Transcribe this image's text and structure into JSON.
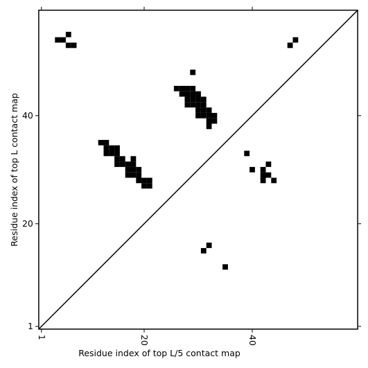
{
  "chart_data": {
    "type": "scatter",
    "marker": "square",
    "color": "#000000",
    "diagonal": true,
    "xlabel": "Residue index of top L/5 contact map",
    "ylabel": "Residue index of top L contact map",
    "xlim": [
      0.5,
      59.5
    ],
    "ylim": [
      0.5,
      59.5
    ],
    "xticks": [
      1,
      20,
      40
    ],
    "yticks": [
      1,
      20,
      40
    ],
    "x": [
      6,
      4,
      5,
      6,
      7,
      47,
      48,
      29,
      26,
      27,
      28,
      29,
      27,
      28,
      29,
      30,
      28,
      29,
      30,
      31,
      28,
      29,
      30,
      31,
      30,
      31,
      32,
      30,
      31,
      32,
      33,
      32,
      33,
      32,
      12,
      13,
      13,
      14,
      15,
      13,
      14,
      15,
      15,
      16,
      18,
      15,
      16,
      17,
      18,
      17,
      18,
      19,
      17,
      18,
      19,
      19,
      20,
      21,
      20,
      21,
      39,
      43,
      40,
      42,
      42,
      43,
      42,
      44,
      32,
      31,
      35
    ],
    "values": [
      55,
      54,
      54,
      53,
      53,
      53,
      54,
      48,
      45,
      45,
      45,
      45,
      44,
      44,
      44,
      44,
      43,
      43,
      43,
      43,
      42,
      42,
      42,
      42,
      41,
      41,
      41,
      40,
      40,
      40,
      40,
      39,
      39,
      38,
      35,
      35,
      34,
      34,
      34,
      33,
      33,
      33,
      32,
      32,
      32,
      31,
      31,
      31,
      31,
      30,
      30,
      30,
      29,
      29,
      29,
      28,
      28,
      28,
      27,
      27,
      33,
      31,
      30,
      30,
      29,
      29,
      28,
      28,
      16,
      15,
      12
    ]
  }
}
